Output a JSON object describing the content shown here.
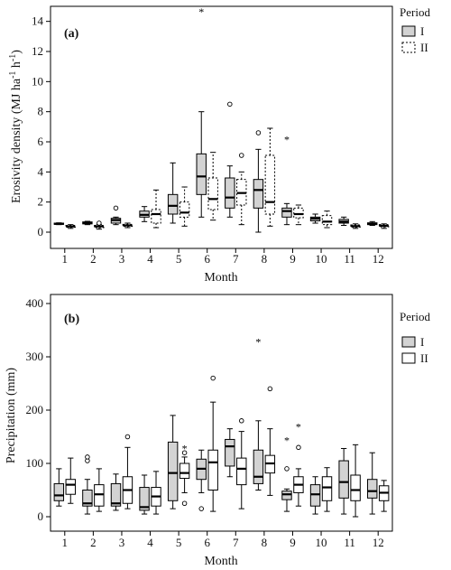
{
  "chart_data": [
    {
      "type": "box",
      "panel_label": "(a)",
      "xlabel": "Month",
      "ylabel": "Erosivity density (MJ ha",
      "ylabel_sup1": "-1",
      "ylabel_mid": " h",
      "ylabel_sup2": "-1",
      "ylabel_end": ")",
      "ylim": [
        0,
        15
      ],
      "yticks": [
        0,
        2,
        4,
        6,
        8,
        10,
        12,
        14
      ],
      "categories": [
        "1",
        "2",
        "3",
        "4",
        "5",
        "6",
        "7",
        "8",
        "9",
        "10",
        "11",
        "12"
      ],
      "legend": {
        "title": "Period",
        "placement": "top-right-outside",
        "entries": [
          "I",
          "II"
        ]
      },
      "series": [
        {
          "name": "I",
          "fill": "#d3d3d3",
          "stroke_style": "solid",
          "boxes": [
            {
              "min": 0.5,
              "q1": 0.52,
              "median": 0.55,
              "q3": 0.6,
              "max": 0.62,
              "outliers": [],
              "extremes": []
            },
            {
              "min": 0.5,
              "q1": 0.55,
              "median": 0.6,
              "q3": 0.68,
              "max": 0.72,
              "outliers": [],
              "extremes": []
            },
            {
              "min": 0.5,
              "q1": 0.6,
              "median": 0.8,
              "q3": 0.92,
              "max": 1.0,
              "outliers": [
                1.6
              ],
              "extremes": []
            },
            {
              "min": 0.7,
              "q1": 1.0,
              "median": 1.15,
              "q3": 1.4,
              "max": 1.7,
              "outliers": [],
              "extremes": []
            },
            {
              "min": 0.6,
              "q1": 1.2,
              "median": 1.75,
              "q3": 2.5,
              "max": 4.6,
              "outliers": [],
              "extremes": []
            },
            {
              "min": 1.0,
              "q1": 2.5,
              "median": 3.7,
              "q3": 5.2,
              "max": 8.0,
              "outliers": [],
              "extremes": [
                14.7
              ]
            },
            {
              "min": 1.0,
              "q1": 1.6,
              "median": 2.3,
              "q3": 3.6,
              "max": 4.4,
              "outliers": [
                8.5
              ],
              "extremes": []
            },
            {
              "min": 0.0,
              "q1": 1.6,
              "median": 2.8,
              "q3": 3.5,
              "max": 5.5,
              "outliers": [
                6.6
              ],
              "extremes": []
            },
            {
              "min": 0.5,
              "q1": 1.0,
              "median": 1.4,
              "q3": 1.6,
              "max": 1.9,
              "outliers": [],
              "extremes": [
                6.2
              ]
            },
            {
              "min": 0.6,
              "q1": 0.75,
              "median": 0.9,
              "q3": 1.0,
              "max": 1.2,
              "outliers": [],
              "extremes": []
            },
            {
              "min": 0.45,
              "q1": 0.6,
              "median": 0.7,
              "q3": 0.85,
              "max": 1.0,
              "outliers": [],
              "extremes": []
            },
            {
              "min": 0.45,
              "q1": 0.5,
              "median": 0.55,
              "q3": 0.62,
              "max": 0.7,
              "outliers": [],
              "extremes": []
            }
          ]
        },
        {
          "name": "II",
          "fill": "#ffffff",
          "stroke_style": "dashed",
          "boxes": [
            {
              "min": 0.25,
              "q1": 0.32,
              "median": 0.38,
              "q3": 0.45,
              "max": 0.5,
              "outliers": [],
              "extremes": []
            },
            {
              "min": 0.2,
              "q1": 0.3,
              "median": 0.38,
              "q3": 0.45,
              "max": 0.5,
              "outliers": [
                0.6
              ],
              "extremes": []
            },
            {
              "min": 0.3,
              "q1": 0.38,
              "median": 0.45,
              "q3": 0.52,
              "max": 0.6,
              "outliers": [],
              "extremes": []
            },
            {
              "min": 0.3,
              "q1": 0.6,
              "median": 1.2,
              "q3": 1.5,
              "max": 2.8,
              "outliers": [],
              "extremes": []
            },
            {
              "min": 0.4,
              "q1": 1.0,
              "median": 1.3,
              "q3": 2.0,
              "max": 3.0,
              "outliers": [],
              "extremes": []
            },
            {
              "min": 0.8,
              "q1": 1.5,
              "median": 2.2,
              "q3": 3.6,
              "max": 5.3,
              "outliers": [],
              "extremes": []
            },
            {
              "min": 0.5,
              "q1": 1.8,
              "median": 2.6,
              "q3": 3.5,
              "max": 4.0,
              "outliers": [
                5.1
              ],
              "extremes": []
            },
            {
              "min": 0.4,
              "q1": 1.2,
              "median": 2.0,
              "q3": 5.1,
              "max": 6.9,
              "outliers": [],
              "extremes": []
            },
            {
              "min": 0.5,
              "q1": 0.95,
              "median": 1.2,
              "q3": 1.6,
              "max": 1.8,
              "outliers": [],
              "extremes": []
            },
            {
              "min": 0.3,
              "q1": 0.5,
              "median": 0.7,
              "q3": 1.1,
              "max": 1.4,
              "outliers": [],
              "extremes": []
            },
            {
              "min": 0.25,
              "q1": 0.33,
              "median": 0.4,
              "q3": 0.48,
              "max": 0.55,
              "outliers": [],
              "extremes": []
            },
            {
              "min": 0.25,
              "q1": 0.35,
              "median": 0.42,
              "q3": 0.5,
              "max": 0.55,
              "outliers": [],
              "extremes": []
            }
          ]
        }
      ]
    },
    {
      "type": "box",
      "panel_label": "(b)",
      "xlabel": "Month",
      "ylabel": "Precipitation (mm)",
      "ylim": [
        0,
        400
      ],
      "yticks": [
        0,
        100,
        200,
        300,
        400
      ],
      "categories": [
        "1",
        "2",
        "3",
        "4",
        "5",
        "6",
        "7",
        "8",
        "9",
        "10",
        "11",
        "12"
      ],
      "legend": {
        "title": "Period",
        "placement": "top-right-outside",
        "entries": [
          "I",
          "II"
        ]
      },
      "series": [
        {
          "name": "I",
          "boxes": [
            {
              "min": 20,
              "q1": 30,
              "median": 40,
              "q3": 62,
              "max": 90,
              "outliers": [],
              "extremes": []
            },
            {
              "min": 5,
              "q1": 20,
              "median": 25,
              "q3": 50,
              "max": 70,
              "outliers": [
                105,
                112
              ],
              "extremes": []
            },
            {
              "min": 12,
              "q1": 20,
              "median": 25,
              "q3": 62,
              "max": 80,
              "outliers": [],
              "extremes": []
            },
            {
              "min": 5,
              "q1": 12,
              "median": 18,
              "q3": 55,
              "max": 78,
              "outliers": [],
              "extremes": []
            },
            {
              "min": 15,
              "q1": 30,
              "median": 82,
              "q3": 140,
              "max": 190,
              "outliers": [],
              "extremes": []
            },
            {
              "min": 45,
              "q1": 70,
              "median": 90,
              "q3": 108,
              "max": 125,
              "outliers": [
                15
              ],
              "extremes": []
            },
            {
              "min": 75,
              "q1": 95,
              "median": 132,
              "q3": 145,
              "max": 165,
              "outliers": [],
              "extremes": []
            },
            {
              "min": 50,
              "q1": 62,
              "median": 75,
              "q3": 125,
              "max": 180,
              "outliers": [],
              "extremes": [
                330
              ]
            },
            {
              "min": 10,
              "q1": 32,
              "median": 42,
              "q3": 48,
              "max": 52,
              "outliers": [
                90
              ],
              "extremes": [
                145
              ]
            },
            {
              "min": 5,
              "q1": 20,
              "median": 42,
              "q3": 60,
              "max": 75,
              "outliers": [],
              "extremes": []
            },
            {
              "min": 5,
              "q1": 35,
              "median": 65,
              "q3": 105,
              "max": 128,
              "outliers": [],
              "extremes": []
            },
            {
              "min": 5,
              "q1": 35,
              "median": 48,
              "q3": 70,
              "max": 120,
              "outliers": [],
              "extremes": []
            }
          ]
        },
        {
          "name": "II",
          "boxes": [
            {
              "min": 25,
              "q1": 42,
              "median": 60,
              "q3": 70,
              "max": 110,
              "outliers": [],
              "extremes": []
            },
            {
              "min": 10,
              "q1": 20,
              "median": 42,
              "q3": 60,
              "max": 90,
              "outliers": [],
              "extremes": []
            },
            {
              "min": 15,
              "q1": 25,
              "median": 50,
              "q3": 75,
              "max": 130,
              "outliers": [
                150
              ],
              "extremes": []
            },
            {
              "min": 5,
              "q1": 20,
              "median": 38,
              "q3": 55,
              "max": 85,
              "outliers": [],
              "extremes": []
            },
            {
              "min": 45,
              "q1": 72,
              "median": 82,
              "q3": 100,
              "max": 112,
              "outliers": [
                25,
                120
              ],
              "extremes": [
                130
              ]
            },
            {
              "min": 10,
              "q1": 50,
              "median": 102,
              "q3": 125,
              "max": 215,
              "outliers": [
                260
              ],
              "extremes": []
            },
            {
              "min": 15,
              "q1": 60,
              "median": 90,
              "q3": 110,
              "max": 160,
              "outliers": [
                180
              ],
              "extremes": []
            },
            {
              "min": 40,
              "q1": 82,
              "median": 100,
              "q3": 115,
              "max": 165,
              "outliers": [
                240
              ],
              "extremes": []
            },
            {
              "min": 20,
              "q1": 45,
              "median": 60,
              "q3": 75,
              "max": 90,
              "outliers": [
                130
              ],
              "extremes": [
                170
              ]
            },
            {
              "min": 10,
              "q1": 30,
              "median": 55,
              "q3": 75,
              "max": 92,
              "outliers": [],
              "extremes": []
            },
            {
              "min": 0,
              "q1": 30,
              "median": 50,
              "q3": 78,
              "max": 135,
              "outliers": [],
              "extremes": []
            },
            {
              "min": 10,
              "q1": 30,
              "median": 45,
              "q3": 58,
              "max": 68,
              "outliers": [],
              "extremes": []
            }
          ]
        }
      ]
    }
  ]
}
